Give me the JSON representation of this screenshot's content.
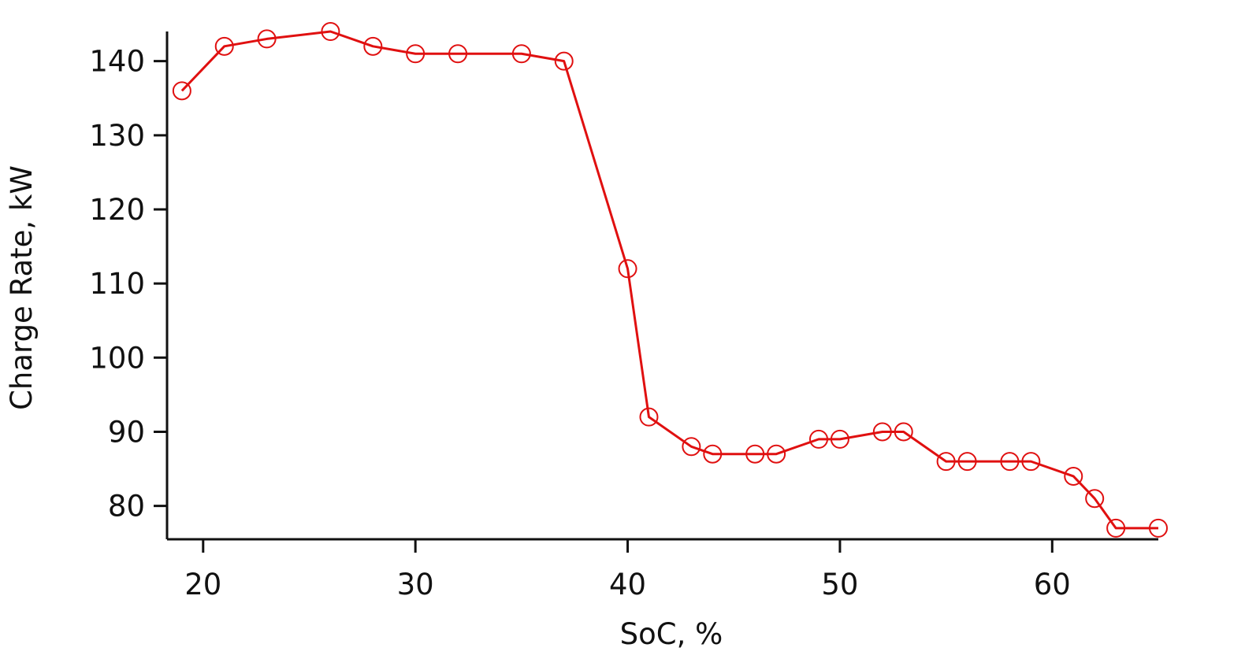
{
  "chart_data": {
    "type": "line",
    "title": "",
    "xlabel": "SoC, %",
    "ylabel": "Charge Rate, kW",
    "xlim": [
      18.3,
      65
    ],
    "ylim": [
      75.5,
      144
    ],
    "x_ticks": [
      20,
      30,
      40,
      50,
      60
    ],
    "y_ticks": [
      80,
      90,
      100,
      110,
      120,
      130,
      140
    ],
    "grid": false,
    "legend": "none",
    "marker": "open-circle",
    "series": [
      {
        "color": "#e01010",
        "x": [
          19,
          21,
          23,
          26,
          28,
          30,
          32,
          35,
          37,
          40,
          41,
          43,
          44,
          46,
          47,
          49,
          50,
          52,
          53,
          55,
          56,
          58,
          59,
          61,
          62,
          63,
          65
        ],
        "y": [
          136,
          142,
          143,
          144,
          142,
          141,
          141,
          141,
          140,
          112,
          92,
          88,
          87,
          87,
          87,
          89,
          89,
          90,
          90,
          86,
          86,
          86,
          86,
          84,
          81,
          77,
          77
        ]
      }
    ]
  }
}
